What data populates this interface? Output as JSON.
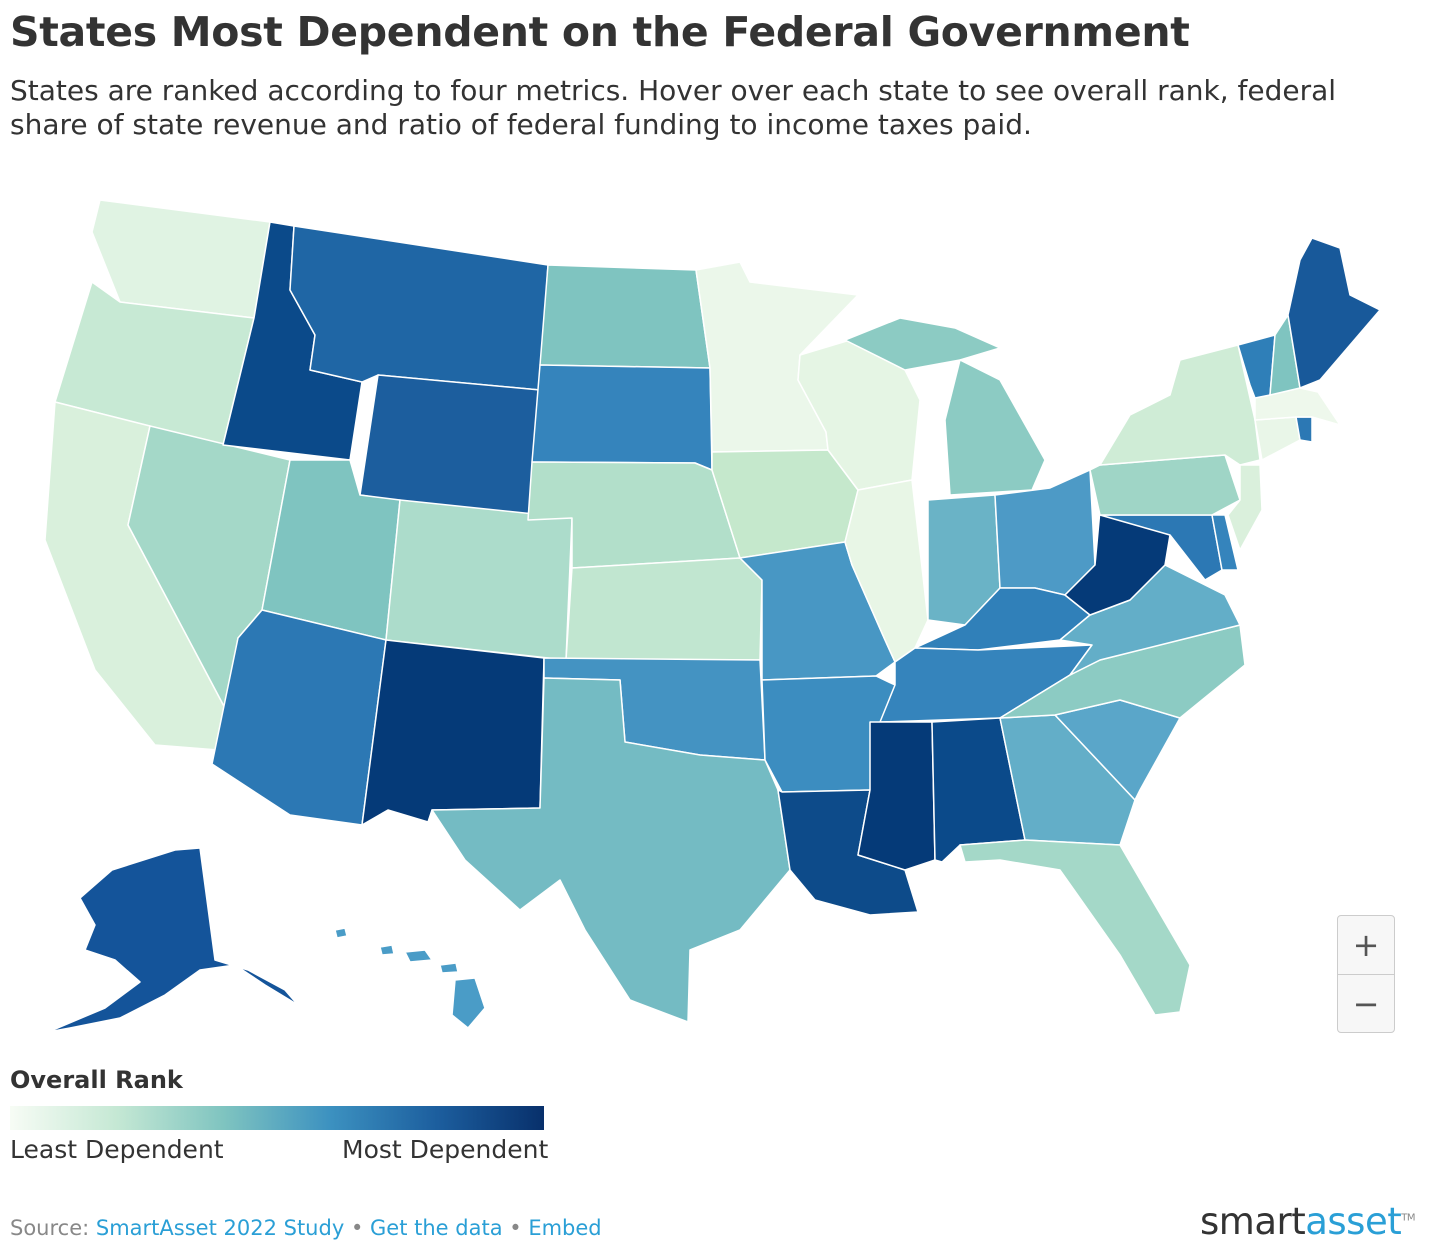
{
  "header": {
    "title": "States Most Dependent on the Federal Government",
    "subtitle": "States are ranked according to four metrics. Hover over each state to see overall rank, federal share of state revenue and ratio of federal funding to income taxes paid."
  },
  "legend": {
    "title": "Overall Rank",
    "low_label": "Least Dependent",
    "high_label": "Most Dependent",
    "colors": [
      "#f7fcf5",
      "#c5e8d4",
      "#7fc4c0",
      "#3c91c0",
      "#1c5e9e",
      "#08306b"
    ]
  },
  "zoom": {
    "in_label": "+",
    "out_label": "−"
  },
  "footer": {
    "source_prefix": "Source:",
    "source_link": "SmartAsset 2022 Study",
    "separator": "•",
    "data_link": "Get the data",
    "embed_link": "Embed"
  },
  "logo": {
    "part1": "smart",
    "part2": "asset",
    "tm": "TM"
  },
  "states": [
    {
      "id": "WA",
      "fill": "#e0f3e3"
    },
    {
      "id": "OR",
      "fill": "#c7e9d4"
    },
    {
      "id": "CA",
      "fill": "#d9f0dc"
    },
    {
      "id": "NV",
      "fill": "#a4d8c8"
    },
    {
      "id": "ID",
      "fill": "#0b4a8a"
    },
    {
      "id": "MT",
      "fill": "#1f66a5"
    },
    {
      "id": "WY",
      "fill": "#1c5e9e"
    },
    {
      "id": "UT",
      "fill": "#7fc4c0"
    },
    {
      "id": "AZ",
      "fill": "#2c78b4"
    },
    {
      "id": "CO",
      "fill": "#acdccb"
    },
    {
      "id": "NM",
      "fill": "#053a78"
    },
    {
      "id": "ND",
      "fill": "#7fc4c0"
    },
    {
      "id": "SD",
      "fill": "#3584bc"
    },
    {
      "id": "NE",
      "fill": "#b2dfca"
    },
    {
      "id": "KS",
      "fill": "#c1e6d0"
    },
    {
      "id": "OK",
      "fill": "#4493c2"
    },
    {
      "id": "TX",
      "fill": "#74bbc3"
    },
    {
      "id": "MN",
      "fill": "#ebf7ea"
    },
    {
      "id": "IA",
      "fill": "#c5e8cc"
    },
    {
      "id": "MO",
      "fill": "#4897c4"
    },
    {
      "id": "AR",
      "fill": "#3c8dc0"
    },
    {
      "id": "LA",
      "fill": "#0d4b8a"
    },
    {
      "id": "WI",
      "fill": "#e5f5e4"
    },
    {
      "id": "IL",
      "fill": "#e8f6e6"
    },
    {
      "id": "MI",
      "fill": "#8ccbc3"
    },
    {
      "id": "IN",
      "fill": "#6ab3c6"
    },
    {
      "id": "OH",
      "fill": "#4d9ac6"
    },
    {
      "id": "KY",
      "fill": "#3080b9"
    },
    {
      "id": "TN",
      "fill": "#3584bc"
    },
    {
      "id": "MS",
      "fill": "#053a78"
    },
    {
      "id": "AL",
      "fill": "#0b4a8a"
    },
    {
      "id": "GA",
      "fill": "#63aec8"
    },
    {
      "id": "FL",
      "fill": "#a4d8c8"
    },
    {
      "id": "SC",
      "fill": "#5aa6c9"
    },
    {
      "id": "NC",
      "fill": "#8ccbc3"
    },
    {
      "id": "VA",
      "fill": "#63aec8"
    },
    {
      "id": "WV",
      "fill": "#053a78"
    },
    {
      "id": "MD",
      "fill": "#2c78b4"
    },
    {
      "id": "DE",
      "fill": "#3584bc"
    },
    {
      "id": "PA",
      "fill": "#9fd5c6"
    },
    {
      "id": "NY",
      "fill": "#cfecd6"
    },
    {
      "id": "NJ",
      "fill": "#daf0dc"
    },
    {
      "id": "CT",
      "fill": "#e9f6e8"
    },
    {
      "id": "RI",
      "fill": "#2c78b4"
    },
    {
      "id": "MA",
      "fill": "#eef8ec"
    },
    {
      "id": "VT",
      "fill": "#2f7fb8"
    },
    {
      "id": "NH",
      "fill": "#7fc4c0"
    },
    {
      "id": "ME",
      "fill": "#18599a"
    },
    {
      "id": "AK",
      "fill": "#14549a"
    },
    {
      "id": "HI",
      "fill": "#4a9cc7"
    }
  ]
}
